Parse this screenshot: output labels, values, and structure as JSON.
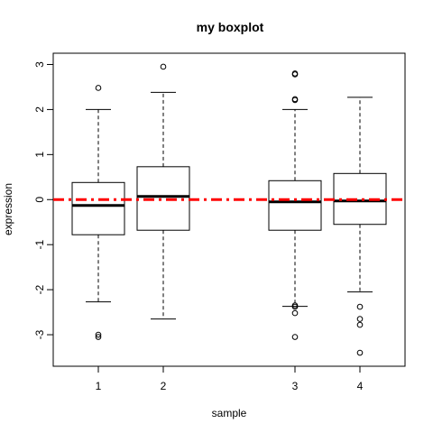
{
  "chart_data": {
    "type": "boxplot",
    "title": "my boxplot",
    "xlabel": "sample",
    "ylabel": "expression",
    "ylim": [
      -3.7,
      3.25
    ],
    "yticks": [
      -3,
      -2,
      -1,
      0,
      1,
      2,
      3
    ],
    "grid": false,
    "legend": "none",
    "series": [
      {
        "name": "1",
        "x": 1,
        "min": -2.27,
        "q1": -0.78,
        "median": -0.13,
        "q3": 0.38,
        "max": 2.0,
        "outliers": [
          2.48,
          -3.0,
          -3.05
        ]
      },
      {
        "name": "2",
        "x": 2,
        "min": -2.65,
        "q1": -0.68,
        "median": 0.07,
        "q3": 0.73,
        "max": 2.38,
        "outliers": [
          2.95
        ]
      },
      {
        "name": "3",
        "x": 3,
        "min": -2.37,
        "q1": -0.68,
        "median": -0.05,
        "q3": 0.42,
        "max": 2.0,
        "outliers": [
          2.8,
          2.78,
          2.23,
          2.21,
          -2.35,
          -2.38,
          -2.52,
          -3.05
        ]
      },
      {
        "name": "4",
        "x": 4,
        "min": -2.05,
        "q1": -0.55,
        "median": -0.03,
        "q3": 0.58,
        "max": 2.27,
        "outliers": [
          -2.38,
          -2.65,
          -2.78,
          -3.4
        ]
      }
    ],
    "reference_line": {
      "y": 0,
      "color": "#ff0000",
      "style": "dash-dot"
    }
  },
  "colors": {
    "box": "#000000",
    "median": "#000000",
    "reference": "#ff0000"
  }
}
